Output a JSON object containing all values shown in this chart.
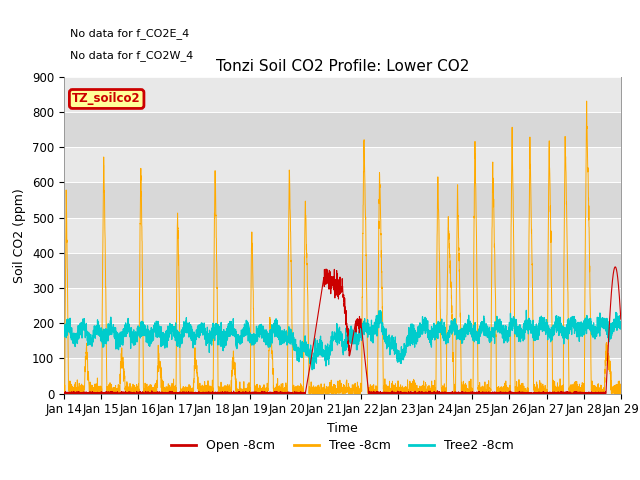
{
  "title": "Tonzi Soil CO2 Profile: Lower CO2",
  "ylabel": "Soil CO2 (ppm)",
  "xlabel": "Time",
  "ylim": [
    0,
    900
  ],
  "yticks": [
    0,
    100,
    200,
    300,
    400,
    500,
    600,
    700,
    800,
    900
  ],
  "xtick_labels": [
    "Jan 14",
    "Jan 15",
    "Jan 16",
    "Jan 17",
    "Jan 18",
    "Jan 19",
    "Jan 20",
    "Jan 21",
    "Jan 22",
    "Jan 23",
    "Jan 24",
    "Jan 25",
    "Jan 26",
    "Jan 27",
    "Jan 28",
    "Jan 29"
  ],
  "no_data_text1": "No data for f_CO2E_4",
  "no_data_text2": "No data for f_CO2W_4",
  "legend_label_box": "TZ_soilco2",
  "legend_entries": [
    "Open -8cm",
    "Tree -8cm",
    "Tree2 -8cm"
  ],
  "legend_colors": [
    "#cc0000",
    "#ffaa00",
    "#00cccc"
  ],
  "open_color": "#cc0000",
  "tree_color": "#ffaa00",
  "tree2_color": "#00cccc",
  "bg_color": "#e8e8e8",
  "stripe_color": "#d8d8d8",
  "title_fontsize": 11,
  "axis_fontsize": 9,
  "tick_fontsize": 8.5
}
